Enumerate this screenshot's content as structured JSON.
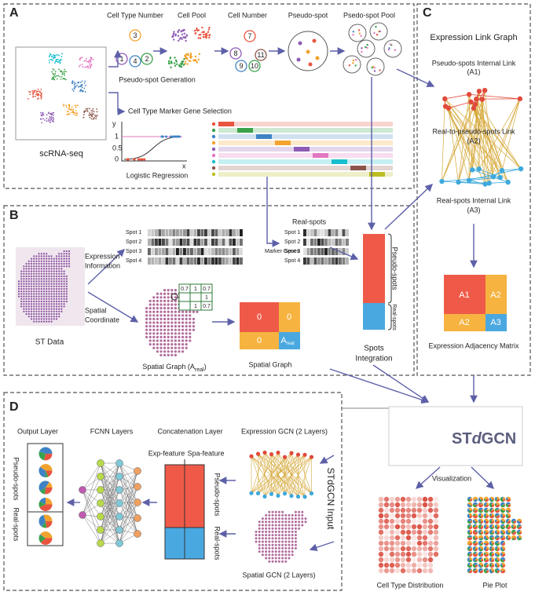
{
  "panel_a": {
    "label": "A",
    "cell_type_number": "Cell Type Number",
    "cell_pool": "Cell Pool",
    "cell_number": "Cell Number",
    "pseudo_spot": "Pseudo-spot",
    "pseudo_spot_pool": "Psedo-spot Pool",
    "pseudo_spot_generation": "Pseudo-spot Generation",
    "marker_gene_selection": "Cell Type Marker Gene Selection",
    "scrna_seq": "scRNA-seq",
    "logistic_regression": "Logistic Regression",
    "cell_type_circles": [
      "3",
      "1",
      "4",
      "2"
    ],
    "cell_number_circles": [
      "7",
      "8",
      "11",
      "9",
      "10"
    ],
    "plot_labels": {
      "y": "y",
      "one": "1",
      "half": "0.5",
      "zero": "0",
      "x": "x"
    }
  },
  "panel_b": {
    "label": "B",
    "spot_labels": [
      "Spot 1",
      "Spot 2",
      "Spot 3",
      "Spot 4"
    ],
    "expression_information": [
      "Expression",
      "Information"
    ],
    "spatial_coordinate": [
      "Spatial",
      "Coordinate"
    ],
    "st_data": "ST Data",
    "real_spots": "Real-spots",
    "marker_genes": "Marker Genes",
    "real_spot_labels": [
      "Spot 1",
      "Spot 2",
      "Spot 3",
      "Spot 4"
    ],
    "neighbor_weights": [
      "0.7",
      "1",
      "0.7",
      "1",
      "1",
      "0.7"
    ],
    "spatial_graph_a": {
      "text": "Spatial Graph (A",
      "sub": "real",
      "close": ")"
    },
    "block_matrix": {
      "top_left": "0",
      "top_right": "0",
      "bottom_left": "0",
      "bottom_right": "A",
      "bottom_right_sub": "real"
    },
    "spatial_graph": "Spatial Graph",
    "integration_pseudo": "Pseudo-spots",
    "integration_real": "Real-spots",
    "spots_integration": [
      "Spots",
      "Integration"
    ]
  },
  "panel_c": {
    "label": "C",
    "title": "Expression Link Graph",
    "pseudo_link": [
      "Pseudo-spots Internal Link",
      "(A1)"
    ],
    "cross_link": [
      "Real-to-pseudo-spots Link",
      "(A2)"
    ],
    "real_link": [
      "Real-spots Internal Link",
      "(A3)"
    ],
    "matrix": [
      "A1",
      "A2",
      "A2",
      "A3"
    ],
    "matrix_title": "Expression Adjacency Matrix"
  },
  "output": {
    "logo": [
      "ST",
      "d",
      "GCN"
    ],
    "visualization": "Visualization",
    "cell_type_distribution": "Cell Type Distribution",
    "pie_plot": "Pie Plot"
  },
  "panel_d": {
    "label": "D",
    "output_layer": "Output Layer",
    "fcnn_layers": "FCNN Layers",
    "concatenation_layer": "Concatenation Layer",
    "expression_gcn": "Expression GCN (2 Layers)",
    "exp_feature": "Exp-feature",
    "spa_feature": "Spa-feature",
    "concat_pseudo": "Pseudo-spots",
    "concat_real": "Real-spots",
    "output_pseudo": "Pseudo-spots",
    "output_real": "Real-spots",
    "input": "STdGCN Input",
    "spatial_gcn": "Spatial GCN (2 Layers)"
  }
}
